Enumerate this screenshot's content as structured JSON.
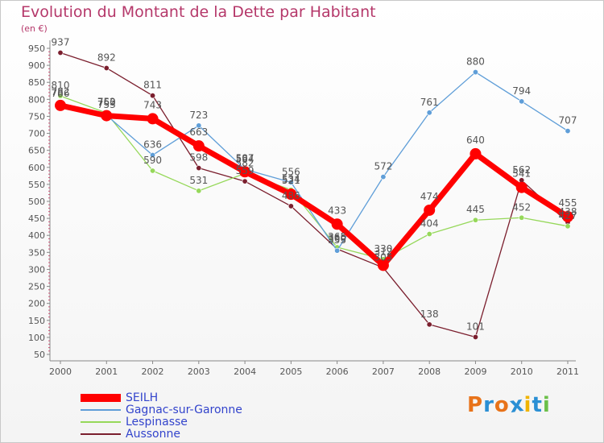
{
  "header": {
    "title": "Evolution du Montant de la Dette par Habitant",
    "unit": "(en €)"
  },
  "colors": {
    "title": "#b5386a",
    "SEILH": "#ff0000",
    "Gagnac-sur-Garonne": "#5f9ed8",
    "Lespinasse": "#96d85a",
    "Aussonne": "#7b1f2e"
  },
  "chart_data": {
    "type": "line",
    "title": "Evolution du Montant de la Dette par Habitant",
    "ylabel": "(en €)",
    "x": [
      "2000",
      "2001",
      "2002",
      "2003",
      "2004",
      "2005",
      "2006",
      "2007",
      "2008",
      "2009",
      "2010",
      "2011"
    ],
    "ylim": [
      50,
      950
    ],
    "yticks": [
      50,
      100,
      150,
      200,
      250,
      300,
      350,
      400,
      450,
      500,
      550,
      600,
      650,
      700,
      750,
      800,
      850,
      900,
      950
    ],
    "grid": false,
    "legend_position": "bottom-left",
    "series": [
      {
        "name": "Aussonne",
        "color": "#7b1f2e",
        "values": [
          937,
          892,
          811,
          598,
          559,
          486,
          360,
          305,
          138,
          101,
          562,
          438
        ]
      },
      {
        "name": "Lespinasse",
        "color": "#96d85a",
        "values": [
          810,
          760,
          590,
          531,
          582,
          534,
          365,
          330,
          404,
          445,
          452,
          427
        ]
      },
      {
        "name": "Gagnac-sur-Garonne",
        "color": "#5f9ed8",
        "values": [
          786,
          753,
          636,
          723,
          594,
          556,
          355,
          572,
          761,
          880,
          794,
          707
        ]
      },
      {
        "name": "SEILH",
        "color": "#ff0000",
        "values": [
          782,
          752,
          743,
          663,
          587,
          521,
          433,
          312,
          474,
          640,
          541,
          455
        ]
      }
    ]
  },
  "logo": {
    "letters": [
      "P",
      "r",
      "o",
      "x",
      "i",
      "t",
      "i"
    ],
    "colors": [
      "#e8731a",
      "#2a8fd4",
      "#e8731a",
      "#2a8fd4",
      "#f0b400",
      "#2a8fd4",
      "#6cc04a"
    ]
  }
}
